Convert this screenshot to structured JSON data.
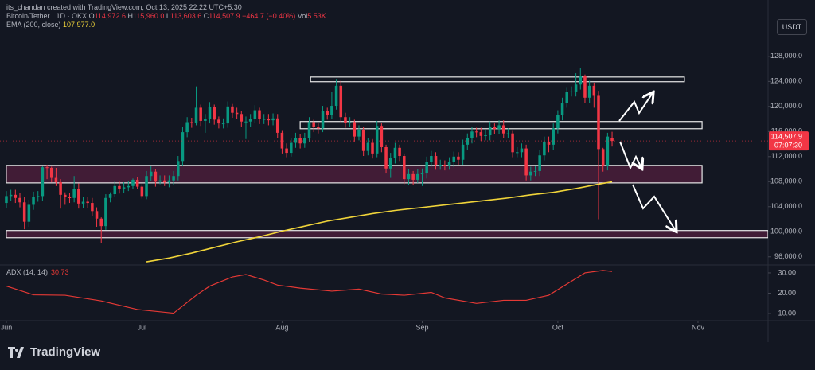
{
  "header": {
    "credit": "its_chandan created with TradingView.com, Oct 13, 2025 22:22 UTC+5:30",
    "symbol": "Bitcoin/Tether · 1D · OKX",
    "ohlc": [
      {
        "key": "O",
        "value": "114,972.6"
      },
      {
        "key": "H",
        "value": "115,960.0"
      },
      {
        "key": "L",
        "value": "113,603.6"
      },
      {
        "key": "C",
        "value": "114,507.9"
      }
    ],
    "change": "−464.7 (−0.40%)",
    "vol_key": "Vol",
    "vol": "5.53K",
    "currency": "USDT",
    "brand": "TradingView"
  },
  "chart_data": [
    {
      "type": "candlestick",
      "up_color": "#089981",
      "down_color": "#f23645",
      "xlim": [
        -1.4,
        168.5
      ],
      "xticks": [
        {
          "value": 0,
          "label": "Jun"
        },
        {
          "value": 30,
          "label": "Jul"
        },
        {
          "value": 61,
          "label": "Aug"
        },
        {
          "value": 92,
          "label": "Sep"
        },
        {
          "value": 122,
          "label": "Oct"
        },
        {
          "value": 153,
          "label": "Nov"
        }
      ],
      "ylim": [
        94700,
        137000
      ],
      "yticks": [
        {
          "value": 128000,
          "label": "128,000.0"
        },
        {
          "value": 124000,
          "label": "124,000.0"
        },
        {
          "value": 120000,
          "label": "120,000.0"
        },
        {
          "value": 116000,
          "label": "116,000.0"
        },
        {
          "value": 112000,
          "label": "112,000.0"
        },
        {
          "value": 108000,
          "label": "108,000.0"
        },
        {
          "value": 104000,
          "label": "104,000.0"
        },
        {
          "value": 100000,
          "label": "100,000.0"
        },
        {
          "value": 96000,
          "label": "96,000.0"
        }
      ],
      "grid": false,
      "countdown": "07:07:30",
      "ohlc": [
        [
          104600,
          106500,
          103800,
          105700
        ],
        [
          105700,
          106700,
          104900,
          105900
        ],
        [
          105900,
          106700,
          104600,
          105400
        ],
        [
          105400,
          106200,
          103900,
          104700
        ],
        [
          104700,
          105500,
          100400,
          101600
        ],
        [
          101600,
          105100,
          100800,
          104300
        ],
        [
          104300,
          106400,
          103500,
          105600
        ],
        [
          105600,
          106500,
          104800,
          105700
        ],
        [
          105700,
          110500,
          104900,
          110300
        ],
        [
          110300,
          110700,
          108400,
          110200
        ],
        [
          110200,
          110400,
          107900,
          108600
        ],
        [
          108600,
          110200,
          107300,
          107900
        ],
        [
          107900,
          108400,
          103700,
          105900
        ],
        [
          105900,
          106300,
          104300,
          105500
        ],
        [
          105500,
          106200,
          104600,
          105400
        ],
        [
          105400,
          108900,
          104700,
          106800
        ],
        [
          106800,
          107700,
          103700,
          104500
        ],
        [
          104500,
          105600,
          103800,
          104800
        ],
        [
          104800,
          105600,
          103800,
          104600
        ],
        [
          104600,
          105400,
          102500,
          103300
        ],
        [
          103300,
          103900,
          100800,
          102100
        ],
        [
          102100,
          102300,
          98200,
          100900
        ],
        [
          100900,
          106000,
          100300,
          105400
        ],
        [
          105400,
          106300,
          104700,
          106000
        ],
        [
          106000,
          108100,
          105500,
          107300
        ],
        [
          107300,
          108000,
          106100,
          106900
        ],
        [
          106900,
          107900,
          106200,
          107100
        ],
        [
          107100,
          108100,
          106500,
          107300
        ],
        [
          107300,
          108500,
          106900,
          108300
        ],
        [
          108300,
          108800,
          106800,
          107200
        ],
        [
          107200,
          107600,
          105300,
          105700
        ],
        [
          105700,
          109700,
          105200,
          108900
        ],
        [
          108900,
          110500,
          108100,
          109600
        ],
        [
          109600,
          110000,
          107200,
          108000
        ],
        [
          108000,
          109000,
          107600,
          108200
        ],
        [
          108200,
          109000,
          107300,
          107900
        ],
        [
          107900,
          109000,
          107100,
          108200
        ],
        [
          108200,
          109700,
          107500,
          108900
        ],
        [
          108900,
          112100,
          108200,
          111300
        ],
        [
          111300,
          116700,
          110600,
          115900
        ],
        [
          115900,
          118300,
          115100,
          117500
        ],
        [
          117500,
          118200,
          116600,
          117400
        ],
        [
          117400,
          123200,
          117000,
          119800
        ],
        [
          119800,
          120300,
          116900,
          117700
        ],
        [
          117700,
          118800,
          115800,
          118000
        ],
        [
          118000,
          120700,
          117300,
          119900
        ],
        [
          119900,
          120300,
          117100,
          117900
        ],
        [
          117900,
          118400,
          116500,
          117300
        ],
        [
          117300,
          118100,
          116500,
          117300
        ],
        [
          117300,
          120800,
          116600,
          120000
        ],
        [
          120000,
          120400,
          118200,
          119000
        ],
        [
          119000,
          119800,
          118000,
          118800
        ],
        [
          118800,
          119300,
          116800,
          117600
        ],
        [
          117600,
          118400,
          114800,
          117600
        ],
        [
          117600,
          118800,
          116800,
          118000
        ],
        [
          118000,
          120200,
          117300,
          119400
        ],
        [
          119400,
          119800,
          117200,
          118000
        ],
        [
          118000,
          118800,
          117200,
          118000
        ],
        [
          118000,
          118800,
          117000,
          117800
        ],
        [
          117800,
          118900,
          117000,
          118100
        ],
        [
          118100,
          118800,
          115000,
          115800
        ],
        [
          115800,
          116100,
          112500,
          113300
        ],
        [
          113300,
          114100,
          111900,
          112600
        ],
        [
          112600,
          115000,
          112000,
          114200
        ],
        [
          114200,
          115800,
          113400,
          115000
        ],
        [
          115000,
          115600,
          113300,
          114100
        ],
        [
          114100,
          115800,
          113400,
          115000
        ],
        [
          115000,
          118300,
          114400,
          117500
        ],
        [
          117500,
          117900,
          115900,
          116700
        ],
        [
          116700,
          117300,
          115700,
          116500
        ],
        [
          116500,
          120100,
          115900,
          119300
        ],
        [
          119300,
          119800,
          117900,
          118700
        ],
        [
          118700,
          122300,
          118000,
          120100
        ],
        [
          120100,
          124400,
          119500,
          123300
        ],
        [
          123300,
          124100,
          117500,
          118300
        ],
        [
          118300,
          119000,
          116600,
          117400
        ],
        [
          117400,
          118300,
          116700,
          117500
        ],
        [
          117500,
          117900,
          114400,
          115200
        ],
        [
          115200,
          117000,
          114600,
          116200
        ],
        [
          116200,
          116800,
          112100,
          112900
        ],
        [
          112900,
          115000,
          112200,
          114200
        ],
        [
          114200,
          114800,
          111700,
          112500
        ],
        [
          112500,
          117700,
          111900,
          116900
        ],
        [
          116900,
          117300,
          112700,
          113500
        ],
        [
          113500,
          113900,
          109300,
          110100
        ],
        [
          110100,
          112600,
          108600,
          111800
        ],
        [
          111800,
          114200,
          110900,
          113400
        ],
        [
          113400,
          113900,
          111300,
          112100
        ],
        [
          112100,
          112500,
          107600,
          108400
        ],
        [
          108400,
          110000,
          107500,
          109200
        ],
        [
          109200,
          109700,
          107500,
          108300
        ],
        [
          108300,
          110000,
          107800,
          109200
        ],
        [
          109200,
          110100,
          107300,
          109300
        ],
        [
          109300,
          112000,
          108500,
          111200
        ],
        [
          111200,
          112900,
          110400,
          112100
        ],
        [
          112100,
          112700,
          109900,
          110700
        ],
        [
          110700,
          111500,
          109900,
          110700
        ],
        [
          110700,
          111400,
          109800,
          110600
        ],
        [
          110600,
          111900,
          109900,
          111100
        ],
        [
          111100,
          112800,
          110300,
          112000
        ],
        [
          112000,
          112700,
          110700,
          111500
        ],
        [
          111500,
          114700,
          110700,
          113900
        ],
        [
          113900,
          115700,
          113100,
          114900
        ],
        [
          114900,
          116800,
          114100,
          116000
        ],
        [
          116000,
          116600,
          115100,
          115900
        ],
        [
          115900,
          116600,
          114500,
          115300
        ],
        [
          115300,
          116200,
          114600,
          115400
        ],
        [
          115400,
          117600,
          114600,
          116800
        ],
        [
          116800,
          117300,
          115600,
          116400
        ],
        [
          116400,
          117800,
          115600,
          117000
        ],
        [
          117000,
          117800,
          114900,
          115700
        ],
        [
          115700,
          116500,
          114900,
          115700
        ],
        [
          115700,
          116100,
          111900,
          112700
        ],
        [
          112700,
          113500,
          111900,
          112700
        ],
        [
          112700,
          114100,
          111900,
          113300
        ],
        [
          113300,
          113900,
          108200,
          109000
        ],
        [
          109000,
          110400,
          108200,
          109600
        ],
        [
          109600,
          110500,
          108900,
          109700
        ],
        [
          109700,
          113000,
          108900,
          112200
        ],
        [
          112200,
          115200,
          111400,
          114400
        ],
        [
          114400,
          115200,
          112700,
          113900
        ],
        [
          113900,
          117300,
          113100,
          116500
        ],
        [
          116500,
          119400,
          115700,
          118600
        ],
        [
          118600,
          121400,
          117800,
          120600
        ],
        [
          120600,
          123100,
          119800,
          122300
        ],
        [
          122300,
          123200,
          121600,
          122400
        ],
        [
          122400,
          125300,
          121600,
          123500
        ],
        [
          123500,
          126200,
          122700,
          124800
        ],
        [
          124800,
          125100,
          120600,
          121400
        ],
        [
          121400,
          124100,
          120600,
          123300
        ],
        [
          123300,
          123800,
          119800,
          121700
        ],
        [
          121700,
          122500,
          102000,
          113200
        ],
        [
          113200,
          113400,
          109600,
          110600
        ],
        [
          110600,
          115800,
          109800,
          115200
        ],
        [
          114972.6,
          115960,
          113603.6,
          114507.9
        ]
      ],
      "ema": {
        "name": "EMA (200, close)",
        "color": "#f0d43a",
        "x": [
          31,
          36,
          41,
          46,
          51,
          56,
          61,
          66,
          71,
          76,
          81,
          86,
          91,
          96,
          101,
          106,
          111,
          116,
          121,
          126,
          131,
          134
        ],
        "values": [
          95200,
          95800,
          96600,
          97500,
          98400,
          99200,
          100100,
          100900,
          101700,
          102300,
          102900,
          103400,
          103800,
          104200,
          104600,
          105000,
          105400,
          105900,
          106300,
          106900,
          107600,
          107977
        ],
        "value_label": "107,977.0"
      },
      "zones": [
        {
          "from": 67.3,
          "to": 150,
          "top": 124700,
          "bottom": 123950,
          "color": "none"
        },
        {
          "from": 65,
          "to": 153.9,
          "top": 117600,
          "bottom": 116450,
          "color": "none"
        },
        {
          "from": 0,
          "to": 153.9,
          "top": 110600,
          "bottom": 107800,
          "color": "#4a1d3a"
        },
        {
          "from": 0,
          "to": 168.5,
          "top": 100200,
          "bottom": 99050,
          "color": "#4a1d3a"
        }
      ]
    },
    {
      "type": "line",
      "name": "ADX (14, 14)",
      "color": "#e53935",
      "xlim": [
        -1.4,
        168.5
      ],
      "ylim": [
        6.5,
        33.9
      ],
      "yticks": [
        {
          "value": 30,
          "label": "30.00"
        },
        {
          "value": 20,
          "label": "20.00"
        },
        {
          "value": 10,
          "label": "10.00"
        }
      ],
      "x": [
        0,
        6,
        13,
        21,
        29,
        37,
        42,
        45,
        50,
        53,
        57,
        60,
        65,
        72,
        78,
        83,
        88,
        94,
        97,
        104,
        110,
        115,
        120,
        124,
        128,
        132,
        134
      ],
      "values": [
        23.5,
        19.2,
        19,
        16.2,
        12,
        10.2,
        19,
        23.5,
        28,
        29.2,
        26.5,
        24,
        22.5,
        21,
        22,
        19.6,
        19,
        20.4,
        17.7,
        15,
        16.5,
        16.5,
        19,
        24.5,
        30,
        31.2,
        30.73
      ]
    }
  ]
}
